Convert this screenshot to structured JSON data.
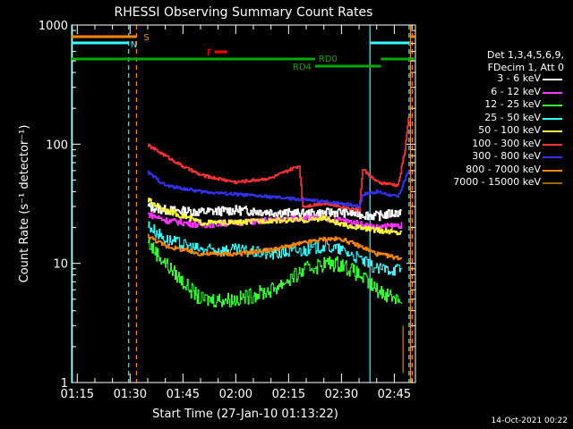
{
  "chart_data": {
    "type": "line",
    "title": "RHESSI Observing Summary Count Rates",
    "xlabel": "Start Time (27-Jan-10 01:13:22)",
    "ylabel": "Count Rate (s⁻¹ detector⁻¹)",
    "yscale": "log",
    "ylim": [
      1,
      1000
    ],
    "xlim_minutes": [
      73.4,
      171
    ],
    "x_ticks": [
      {
        "min": 75,
        "label": "01:15"
      },
      {
        "min": 90,
        "label": "01:30"
      },
      {
        "min": 105,
        "label": "01:45"
      },
      {
        "min": 120,
        "label": "02:00"
      },
      {
        "min": 135,
        "label": "02:15"
      },
      {
        "min": 150,
        "label": "02:30"
      },
      {
        "min": 165,
        "label": "02:45"
      }
    ],
    "y_ticks": [
      {
        "value": 1,
        "label": "1"
      },
      {
        "value": 10,
        "label": "10"
      },
      {
        "value": 100,
        "label": "100"
      },
      {
        "value": 1000,
        "label": "1000"
      }
    ],
    "legend_header": [
      "Det 1,3,4,5,6,9,",
      "FDecim 1, Att 0"
    ],
    "series": [
      {
        "name": "3 - 6 keV",
        "color": "#ffffff",
        "base": 27,
        "hump": 4,
        "noise": 0.09,
        "points": [
          [
            95,
            30
          ],
          [
            100,
            28
          ],
          [
            110,
            27
          ],
          [
            120,
            28
          ],
          [
            130,
            27
          ],
          [
            140,
            26
          ],
          [
            150,
            27
          ],
          [
            160,
            25
          ],
          [
            167,
            27
          ]
        ]
      },
      {
        "name": "6 - 12 keV",
        "color": "#ff33ff",
        "base": 22,
        "hump": 4,
        "noise": 0.06,
        "points": [
          [
            95,
            26
          ],
          [
            100,
            23
          ],
          [
            110,
            21
          ],
          [
            120,
            22
          ],
          [
            130,
            23
          ],
          [
            140,
            24
          ],
          [
            150,
            23
          ],
          [
            160,
            20
          ],
          [
            167,
            21
          ]
        ]
      },
      {
        "name": "12 - 25 keV",
        "color": "#33ff33",
        "base": 7,
        "hump": 4,
        "noise": 0.15,
        "points": [
          [
            95,
            15
          ],
          [
            100,
            10
          ],
          [
            105,
            7
          ],
          [
            110,
            5
          ],
          [
            120,
            5
          ],
          [
            130,
            6
          ],
          [
            140,
            9
          ],
          [
            145,
            10
          ],
          [
            150,
            10
          ],
          [
            155,
            8
          ],
          [
            160,
            6
          ],
          [
            167,
            5
          ]
        ]
      },
      {
        "name": "25 - 50 keV",
        "color": "#33ffff",
        "base": 10,
        "hump": 3,
        "noise": 0.12,
        "points": [
          [
            95,
            21
          ],
          [
            100,
            16
          ],
          [
            110,
            13
          ],
          [
            120,
            13
          ],
          [
            130,
            12
          ],
          [
            140,
            13
          ],
          [
            145,
            14
          ],
          [
            150,
            13
          ],
          [
            155,
            11
          ],
          [
            160,
            9
          ],
          [
            167,
            9
          ]
        ]
      },
      {
        "name": "50 - 100 keV",
        "color": "#ffff33",
        "base": 19,
        "hump": 3,
        "noise": 0.05,
        "points": [
          [
            95,
            34
          ],
          [
            100,
            28
          ],
          [
            110,
            22
          ],
          [
            120,
            22
          ],
          [
            130,
            23
          ],
          [
            140,
            23
          ],
          [
            145,
            24
          ],
          [
            150,
            21
          ],
          [
            160,
            19
          ],
          [
            167,
            18
          ]
        ]
      },
      {
        "name": "100 - 300 keV",
        "color": "#ff3333",
        "base": 50,
        "hump": 8,
        "noise": 0.03,
        "points": [
          [
            95,
            98
          ],
          [
            100,
            80
          ],
          [
            105,
            65
          ],
          [
            110,
            55
          ],
          [
            120,
            48
          ],
          [
            130,
            52
          ],
          [
            138,
            66
          ],
          [
            139,
            30
          ],
          [
            145,
            32
          ],
          [
            150,
            30
          ],
          [
            155,
            28
          ],
          [
            156,
            62
          ],
          [
            160,
            48
          ],
          [
            166,
            45
          ],
          [
            168,
            90
          ],
          [
            169,
            170
          ]
        ]
      },
      {
        "name": "300 - 800 keV",
        "color": "#3333ff",
        "base": 40,
        "hump": 5,
        "noise": 0.03,
        "points": [
          [
            95,
            58
          ],
          [
            100,
            45
          ],
          [
            110,
            40
          ],
          [
            120,
            38
          ],
          [
            130,
            36
          ],
          [
            140,
            34
          ],
          [
            150,
            32
          ],
          [
            155,
            30
          ],
          [
            156,
            38
          ],
          [
            160,
            40
          ],
          [
            166,
            36
          ],
          [
            169,
            60
          ]
        ]
      },
      {
        "name": "800 - 7000 keV",
        "color": "#ff8800",
        "base": 12,
        "hump": 4,
        "noise": 0.04,
        "points": [
          [
            95,
            17
          ],
          [
            100,
            14
          ],
          [
            110,
            12
          ],
          [
            120,
            12
          ],
          [
            130,
            13
          ],
          [
            140,
            15
          ],
          [
            145,
            16
          ],
          [
            150,
            16
          ],
          [
            155,
            14
          ],
          [
            160,
            12
          ],
          [
            167,
            11
          ]
        ]
      },
      {
        "name": "7000 - 15000 keV",
        "color": "#996600",
        "base": 1.5,
        "hump": 0,
        "noise": 0,
        "points": [
          [
            167.5,
            1.2
          ],
          [
            167.5,
            3
          ]
        ]
      }
    ],
    "flags": [
      {
        "label": "S",
        "color": "#ff8800",
        "y_row": 1,
        "spans": [
          [
            73.4,
            91.8
          ],
          [
            169.6,
            171
          ]
        ]
      },
      {
        "label": "N",
        "color": "#33ffff",
        "y_row": 2,
        "spans": [
          [
            73.4,
            89.6
          ],
          [
            158.1,
            169.2
          ]
        ]
      },
      {
        "label": "F",
        "color": "#ff0000",
        "y_row": 3,
        "spans": [
          [
            114,
            117.5
          ]
        ]
      },
      {
        "label": "RD0",
        "color": "#00aa00",
        "y_row": 4,
        "spans": [
          [
            73.4,
            142.5
          ],
          [
            161.2,
            171
          ]
        ]
      },
      {
        "label": "RD4",
        "color": "#00aa00",
        "y_row": 5,
        "spans": [
          [
            142.5,
            161.2
          ]
        ]
      }
    ],
    "vlines": [
      {
        "min": 73.6,
        "color": "#33ffff",
        "style": "solid"
      },
      {
        "min": 89.6,
        "color": "#33ffff",
        "style": "dashed"
      },
      {
        "min": 91.8,
        "color": "#ff8800",
        "style": "dashed"
      },
      {
        "min": 158.1,
        "color": "#33ffff",
        "style": "solid"
      },
      {
        "min": 169.2,
        "color": "#33ffff",
        "style": "dashed"
      },
      {
        "min": 169.6,
        "color": "#ff8800",
        "style": "solid"
      },
      {
        "min": 170.1,
        "color": "#ff8800",
        "style": "dashed"
      }
    ]
  },
  "footer": "14-Oct-2021 00:22"
}
